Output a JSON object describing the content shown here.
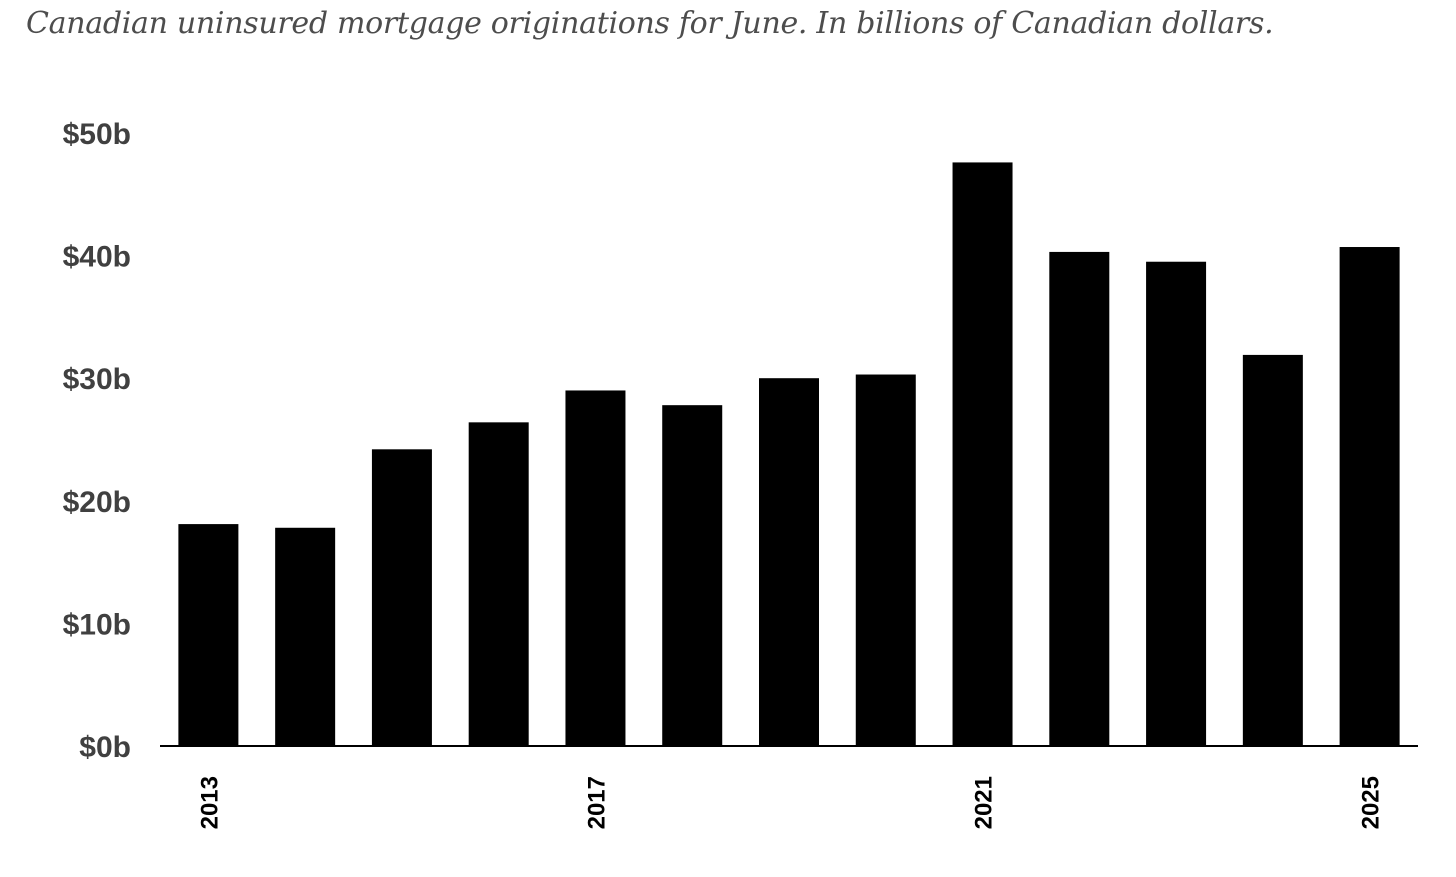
{
  "chart_data": {
    "type": "bar",
    "title": "Canadian uninsured mortgage originations for June. In billions of Canadian dollars.",
    "xlabel": "",
    "ylabel": "",
    "categories": [
      "2013",
      "2014",
      "2015",
      "2016",
      "2017",
      "2018",
      "2019",
      "2020",
      "2021",
      "2022",
      "2023",
      "2024",
      "2025"
    ],
    "values": [
      18.1,
      17.8,
      24.2,
      26.4,
      29.0,
      27.8,
      30.0,
      30.3,
      47.6,
      40.3,
      39.5,
      31.9,
      40.7
    ],
    "ylim": [
      0,
      50
    ],
    "y_ticks": [
      0,
      10,
      20,
      30,
      40,
      50
    ],
    "y_tick_labels": [
      "$0b",
      "$10b",
      "$20b",
      "$30b",
      "$40b",
      "$50b"
    ],
    "x_tick_labels_shown": [
      "2013",
      "2017",
      "2021",
      "2025"
    ],
    "bar_color": "#000000",
    "grid": false,
    "legend": "none"
  }
}
